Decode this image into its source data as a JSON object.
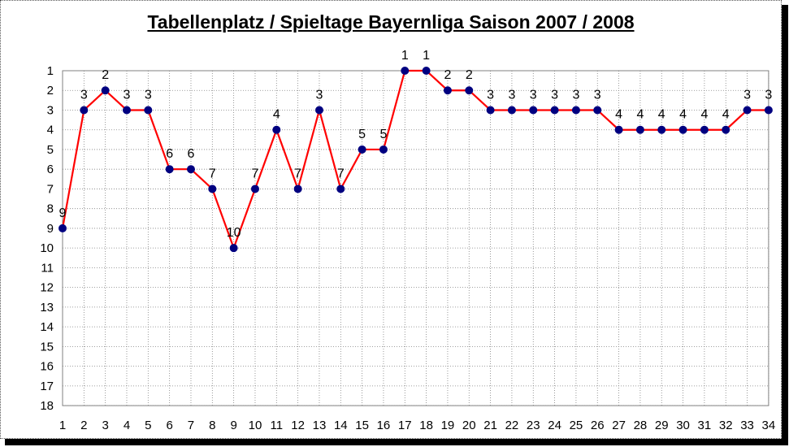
{
  "chart_data": {
    "type": "line",
    "title": "Tabellenplatz / Spieltage Bayernliga Saison 2007 / 2008",
    "xlabel": "",
    "ylabel": "",
    "x": [
      1,
      2,
      3,
      4,
      5,
      6,
      7,
      8,
      9,
      10,
      11,
      12,
      13,
      14,
      15,
      16,
      17,
      18,
      19,
      20,
      21,
      22,
      23,
      24,
      25,
      26,
      27,
      28,
      29,
      30,
      31,
      32,
      33,
      34
    ],
    "x_ticks": [
      "1",
      "2",
      "3",
      "4",
      "5",
      "6",
      "7",
      "8",
      "9",
      "10",
      "11",
      "12",
      "13",
      "14",
      "15",
      "16",
      "17",
      "18",
      "19",
      "20",
      "21",
      "22",
      "23",
      "24",
      "25",
      "26",
      "27",
      "28",
      "29",
      "30",
      "31",
      "32",
      "33",
      "34"
    ],
    "values": [
      9,
      3,
      2,
      3,
      3,
      6,
      6,
      7,
      10,
      7,
      4,
      7,
      3,
      7,
      5,
      5,
      1,
      1,
      2,
      2,
      3,
      3,
      3,
      3,
      3,
      3,
      4,
      4,
      4,
      4,
      4,
      4,
      3,
      3
    ],
    "labels": [
      "9",
      "3",
      "2",
      "3",
      "3",
      "6",
      "6",
      "7",
      "10",
      "7",
      "4",
      "7",
      "3",
      "7",
      "5",
      "5",
      "1",
      "1",
      "2",
      "2",
      "3",
      "3",
      "3",
      "3",
      "3",
      "3",
      "4",
      "4",
      "4",
      "4",
      "4",
      "4",
      "3",
      "3"
    ],
    "y_ticks": [
      "1",
      "2",
      "3",
      "4",
      "5",
      "6",
      "7",
      "8",
      "9",
      "10",
      "11",
      "12",
      "13",
      "14",
      "15",
      "16",
      "17",
      "18"
    ],
    "ylim": [
      1,
      18
    ],
    "y_inverted": true,
    "grid": true,
    "line_color": "#ff0000",
    "marker_color": "#000080"
  }
}
